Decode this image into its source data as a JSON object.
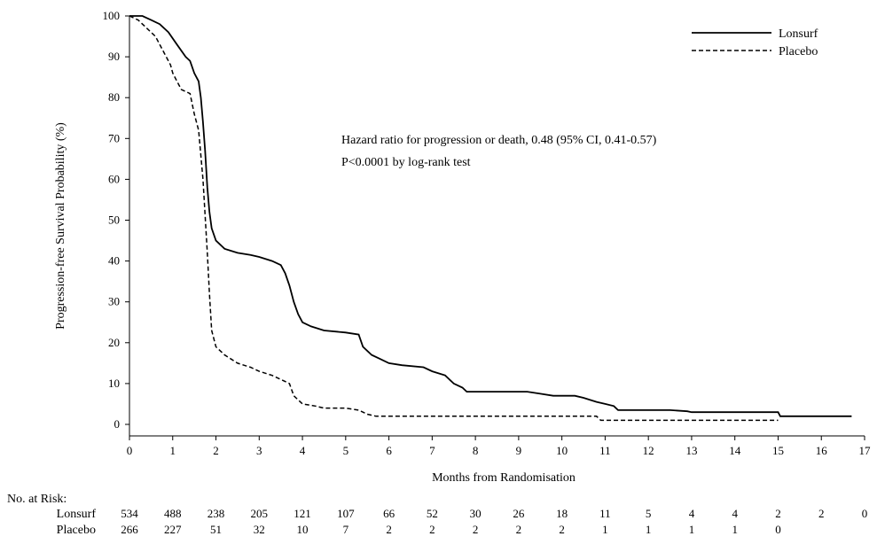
{
  "chart_data": {
    "type": "line",
    "ylabel": "Progression-free  Survival Probability  (%)",
    "xlabel": "Months from Randomisation",
    "xlim": [
      0,
      17
    ],
    "ylim": [
      0,
      100
    ],
    "xticks": [
      0,
      1,
      2,
      3,
      4,
      5,
      6,
      7,
      8,
      9,
      10,
      11,
      12,
      13,
      14,
      15,
      16,
      17
    ],
    "yticks": [
      0,
      10,
      20,
      30,
      40,
      50,
      60,
      70,
      80,
      90,
      100
    ],
    "grid": false,
    "legend_position": "top-right",
    "annotations": [
      "Hazard ratio for progression  or death,  0.48 (95% CI, 0.41-0.57)",
      "P<0.0001 by log-rank  test"
    ],
    "series": [
      {
        "name": "Lonsurf",
        "style": "solid",
        "points": [
          [
            0,
            100
          ],
          [
            0.3,
            100
          ],
          [
            0.5,
            99
          ],
          [
            0.7,
            98
          ],
          [
            0.9,
            96
          ],
          [
            1.1,
            93
          ],
          [
            1.3,
            90
          ],
          [
            1.4,
            89
          ],
          [
            1.5,
            86
          ],
          [
            1.6,
            84
          ],
          [
            1.65,
            80
          ],
          [
            1.7,
            74
          ],
          [
            1.75,
            67
          ],
          [
            1.8,
            58
          ],
          [
            1.85,
            52
          ],
          [
            1.9,
            48
          ],
          [
            2.0,
            45
          ],
          [
            2.2,
            43
          ],
          [
            2.5,
            42
          ],
          [
            2.8,
            41.5
          ],
          [
            3.0,
            41
          ],
          [
            3.3,
            40
          ],
          [
            3.5,
            39
          ],
          [
            3.6,
            37
          ],
          [
            3.7,
            34
          ],
          [
            3.8,
            30
          ],
          [
            3.9,
            27
          ],
          [
            4.0,
            25
          ],
          [
            4.2,
            24
          ],
          [
            4.5,
            23
          ],
          [
            5.0,
            22.5
          ],
          [
            5.3,
            22
          ],
          [
            5.4,
            19
          ],
          [
            5.6,
            17
          ],
          [
            5.8,
            16
          ],
          [
            6.0,
            15
          ],
          [
            6.3,
            14.5
          ],
          [
            6.8,
            14
          ],
          [
            7.0,
            13
          ],
          [
            7.3,
            12
          ],
          [
            7.5,
            10
          ],
          [
            7.7,
            9
          ],
          [
            7.8,
            8
          ],
          [
            8.5,
            8
          ],
          [
            9.2,
            8
          ],
          [
            9.5,
            7.5
          ],
          [
            9.8,
            7
          ],
          [
            10.3,
            7
          ],
          [
            10.5,
            6.5
          ],
          [
            10.8,
            5.5
          ],
          [
            11.0,
            5
          ],
          [
            11.2,
            4.5
          ],
          [
            11.3,
            3.5
          ],
          [
            12.5,
            3.5
          ],
          [
            12.9,
            3.2
          ],
          [
            13.0,
            3
          ],
          [
            15.0,
            3
          ],
          [
            15.05,
            2
          ],
          [
            16.7,
            2
          ]
        ]
      },
      {
        "name": "Placebo",
        "style": "dashed",
        "points": [
          [
            0,
            100
          ],
          [
            0.2,
            99
          ],
          [
            0.4,
            97
          ],
          [
            0.6,
            95
          ],
          [
            0.8,
            91
          ],
          [
            0.95,
            88
          ],
          [
            1.0,
            86
          ],
          [
            1.1,
            84
          ],
          [
            1.2,
            82
          ],
          [
            1.4,
            81
          ],
          [
            1.5,
            76
          ],
          [
            1.6,
            72
          ],
          [
            1.7,
            60
          ],
          [
            1.8,
            42
          ],
          [
            1.85,
            32
          ],
          [
            1.9,
            23
          ],
          [
            2.0,
            19
          ],
          [
            2.2,
            17
          ],
          [
            2.5,
            15
          ],
          [
            2.8,
            14
          ],
          [
            3.0,
            13
          ],
          [
            3.3,
            12
          ],
          [
            3.5,
            11
          ],
          [
            3.7,
            10
          ],
          [
            3.8,
            7
          ],
          [
            4.0,
            5
          ],
          [
            4.3,
            4.5
          ],
          [
            4.5,
            4
          ],
          [
            5.0,
            4
          ],
          [
            5.3,
            3.5
          ],
          [
            5.5,
            2.5
          ],
          [
            5.7,
            2
          ],
          [
            6.0,
            2
          ],
          [
            10.8,
            2
          ],
          [
            10.9,
            1
          ],
          [
            15.0,
            1
          ]
        ]
      }
    ],
    "at_risk": {
      "title": "No. at Risk:",
      "rows": [
        {
          "label": "Lonsurf",
          "values": [
            "534",
            "488",
            "238",
            "205",
            "121",
            "107",
            "66",
            "52",
            "30",
            "26",
            "18",
            "11",
            "5",
            "4",
            "4",
            "2",
            "2",
            "0"
          ]
        },
        {
          "label": "Placebo",
          "values": [
            "266",
            "227",
            "51",
            "32",
            "10",
            "7",
            "2",
            "2",
            "2",
            "2",
            "2",
            "1",
            "1",
            "1",
            "1",
            "0"
          ]
        }
      ]
    }
  }
}
